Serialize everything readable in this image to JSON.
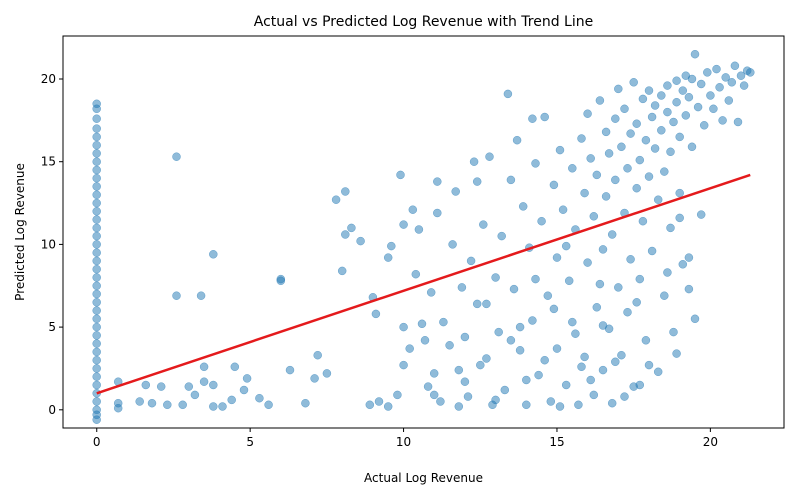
{
  "chart_data": {
    "type": "scatter",
    "title": "Actual vs Predicted Log Revenue with Trend Line",
    "xlabel": "Actual Log Revenue",
    "ylabel": "Predicted Log Revenue",
    "xlim": [
      -1.1,
      22.4
    ],
    "ylim": [
      -1.1,
      22.6
    ],
    "xticks": [
      0,
      5,
      10,
      15,
      20
    ],
    "yticks": [
      0,
      5,
      10,
      15,
      20
    ],
    "grid": false,
    "point_color": "#1f77b4",
    "point_alpha": 0.5,
    "trend_line": {
      "color": "#e41a1c",
      "x": [
        0,
        21.3
      ],
      "y": [
        1.0,
        14.2
      ]
    },
    "points": [
      [
        0,
        18.5
      ],
      [
        0,
        18.2
      ],
      [
        0,
        17.6
      ],
      [
        0,
        17.0
      ],
      [
        0,
        16.5
      ],
      [
        0,
        16.0
      ],
      [
        0,
        15.5
      ],
      [
        0,
        15.0
      ],
      [
        0,
        14.5
      ],
      [
        0,
        14.0
      ],
      [
        0,
        13.5
      ],
      [
        0,
        13.0
      ],
      [
        0,
        12.5
      ],
      [
        0,
        12.0
      ],
      [
        0,
        11.5
      ],
      [
        0,
        11.0
      ],
      [
        0,
        10.5
      ],
      [
        0,
        10.0
      ],
      [
        0,
        9.5
      ],
      [
        0,
        9.0
      ],
      [
        0,
        8.5
      ],
      [
        0,
        8.0
      ],
      [
        0,
        7.5
      ],
      [
        0,
        7.0
      ],
      [
        0,
        6.5
      ],
      [
        0,
        6.0
      ],
      [
        0,
        5.5
      ],
      [
        0,
        5.0
      ],
      [
        0,
        4.5
      ],
      [
        0,
        4.0
      ],
      [
        0,
        3.5
      ],
      [
        0,
        3.0
      ],
      [
        0,
        2.5
      ],
      [
        0,
        2.0
      ],
      [
        0,
        1.5
      ],
      [
        0,
        1.0
      ],
      [
        0,
        0.5
      ],
      [
        0,
        0.0
      ],
      [
        0,
        -0.3
      ],
      [
        0,
        -0.6
      ],
      [
        0.7,
        1.7
      ],
      [
        0.7,
        0.4
      ],
      [
        0.7,
        0.1
      ],
      [
        1.4,
        0.5
      ],
      [
        1.6,
        1.5
      ],
      [
        1.8,
        0.4
      ],
      [
        2.1,
        1.4
      ],
      [
        2.3,
        0.3
      ],
      [
        2.6,
        15.3
      ],
      [
        2.6,
        6.9
      ],
      [
        2.8,
        0.3
      ],
      [
        3.0,
        1.4
      ],
      [
        3.2,
        0.9
      ],
      [
        3.4,
        6.9
      ],
      [
        3.5,
        2.6
      ],
      [
        3.5,
        1.7
      ],
      [
        3.8,
        9.4
      ],
      [
        3.8,
        1.5
      ],
      [
        3.8,
        0.2
      ],
      [
        4.1,
        0.2
      ],
      [
        4.4,
        0.6
      ],
      [
        4.5,
        2.6
      ],
      [
        4.8,
        1.2
      ],
      [
        4.9,
        1.9
      ],
      [
        5.3,
        0.7
      ],
      [
        5.6,
        0.3
      ],
      [
        6.0,
        7.9
      ],
      [
        6.0,
        7.8
      ],
      [
        6.3,
        2.4
      ],
      [
        6.8,
        0.4
      ],
      [
        7.1,
        1.9
      ],
      [
        7.2,
        3.3
      ],
      [
        7.5,
        2.2
      ],
      [
        7.8,
        12.7
      ],
      [
        8.0,
        8.4
      ],
      [
        8.1,
        10.6
      ],
      [
        8.1,
        13.2
      ],
      [
        8.3,
        11.0
      ],
      [
        8.6,
        10.2
      ],
      [
        8.9,
        0.3
      ],
      [
        9.0,
        6.8
      ],
      [
        9.1,
        5.8
      ],
      [
        9.2,
        0.5
      ],
      [
        9.5,
        9.2
      ],
      [
        9.6,
        9.9
      ],
      [
        9.8,
        0.9
      ],
      [
        9.9,
        14.2
      ],
      [
        10.0,
        11.2
      ],
      [
        10.0,
        5.0
      ],
      [
        10.2,
        3.7
      ],
      [
        10.3,
        12.1
      ],
      [
        10.4,
        8.2
      ],
      [
        10.5,
        10.9
      ],
      [
        10.6,
        5.2
      ],
      [
        10.8,
        1.4
      ],
      [
        10.9,
        7.1
      ],
      [
        11.0,
        2.2
      ],
      [
        11.1,
        13.8
      ],
      [
        11.1,
        11.9
      ],
      [
        11.2,
        0.5
      ],
      [
        11.3,
        5.3
      ],
      [
        11.5,
        3.9
      ],
      [
        11.6,
        10.0
      ],
      [
        11.7,
        13.2
      ],
      [
        11.8,
        2.4
      ],
      [
        11.9,
        7.4
      ],
      [
        12.0,
        4.4
      ],
      [
        12.1,
        0.8
      ],
      [
        12.2,
        9.0
      ],
      [
        12.3,
        15.0
      ],
      [
        12.4,
        13.8
      ],
      [
        12.5,
        2.7
      ],
      [
        12.6,
        11.2
      ],
      [
        12.7,
        6.4
      ],
      [
        12.8,
        15.3
      ],
      [
        12.9,
        0.3
      ],
      [
        13.0,
        8.0
      ],
      [
        13.1,
        4.7
      ],
      [
        13.2,
        10.5
      ],
      [
        13.3,
        1.2
      ],
      [
        13.4,
        19.1
      ],
      [
        13.5,
        13.9
      ],
      [
        13.6,
        7.3
      ],
      [
        13.7,
        16.3
      ],
      [
        13.8,
        3.6
      ],
      [
        13.9,
        12.3
      ],
      [
        14.0,
        0.3
      ],
      [
        14.1,
        9.8
      ],
      [
        14.2,
        17.6
      ],
      [
        14.2,
        5.4
      ],
      [
        14.3,
        14.9
      ],
      [
        14.4,
        2.1
      ],
      [
        14.5,
        11.4
      ],
      [
        14.6,
        17.7
      ],
      [
        14.7,
        6.9
      ],
      [
        14.8,
        0.5
      ],
      [
        14.9,
        13.6
      ],
      [
        15.0,
        9.2
      ],
      [
        15.0,
        3.7
      ],
      [
        15.1,
        15.7
      ],
      [
        15.2,
        12.1
      ],
      [
        15.3,
        1.5
      ],
      [
        15.4,
        7.8
      ],
      [
        15.5,
        14.6
      ],
      [
        15.5,
        5.3
      ],
      [
        15.6,
        10.9
      ],
      [
        15.7,
        0.3
      ],
      [
        15.8,
        16.4
      ],
      [
        15.9,
        13.1
      ],
      [
        15.9,
        3.2
      ],
      [
        16.0,
        8.9
      ],
      [
        16.0,
        17.9
      ],
      [
        16.1,
        15.2
      ],
      [
        16.2,
        11.7
      ],
      [
        16.2,
        0.9
      ],
      [
        16.3,
        6.2
      ],
      [
        16.3,
        14.2
      ],
      [
        16.4,
        18.7
      ],
      [
        16.5,
        9.7
      ],
      [
        16.5,
        2.4
      ],
      [
        16.6,
        16.8
      ],
      [
        16.6,
        12.9
      ],
      [
        16.7,
        4.9
      ],
      [
        16.7,
        15.5
      ],
      [
        16.8,
        0.4
      ],
      [
        16.8,
        10.6
      ],
      [
        16.9,
        17.6
      ],
      [
        16.9,
        13.9
      ],
      [
        17.0,
        7.4
      ],
      [
        17.0,
        19.4
      ],
      [
        17.1,
        15.9
      ],
      [
        17.1,
        3.3
      ],
      [
        17.2,
        11.9
      ],
      [
        17.2,
        18.2
      ],
      [
        17.3,
        14.6
      ],
      [
        17.3,
        5.9
      ],
      [
        17.4,
        16.7
      ],
      [
        17.4,
        9.1
      ],
      [
        17.5,
        19.8
      ],
      [
        17.5,
        1.4
      ],
      [
        17.6,
        13.4
      ],
      [
        17.6,
        17.3
      ],
      [
        17.7,
        15.1
      ],
      [
        17.7,
        7.9
      ],
      [
        17.8,
        18.8
      ],
      [
        17.8,
        11.4
      ],
      [
        17.9,
        16.3
      ],
      [
        17.9,
        4.2
      ],
      [
        18.0,
        19.3
      ],
      [
        18.0,
        14.1
      ],
      [
        18.1,
        17.7
      ],
      [
        18.1,
        9.6
      ],
      [
        18.2,
        15.8
      ],
      [
        18.2,
        18.4
      ],
      [
        18.3,
        12.7
      ],
      [
        18.3,
        2.3
      ],
      [
        18.4,
        19.0
      ],
      [
        18.4,
        16.9
      ],
      [
        18.5,
        14.4
      ],
      [
        18.5,
        6.9
      ],
      [
        18.6,
        18.0
      ],
      [
        18.6,
        19.6
      ],
      [
        18.7,
        15.6
      ],
      [
        18.7,
        11.0
      ],
      [
        18.8,
        17.4
      ],
      [
        18.8,
        4.7
      ],
      [
        18.9,
        19.9
      ],
      [
        18.9,
        18.6
      ],
      [
        19.0,
        16.5
      ],
      [
        19.0,
        13.1
      ],
      [
        19.1,
        19.3
      ],
      [
        19.1,
        8.8
      ],
      [
        19.2,
        20.2
      ],
      [
        19.2,
        17.8
      ],
      [
        19.3,
        18.9
      ],
      [
        19.3,
        9.2
      ],
      [
        19.4,
        15.9
      ],
      [
        19.4,
        20.0
      ],
      [
        19.5,
        21.5
      ],
      [
        19.5,
        5.5
      ],
      [
        19.6,
        18.3
      ],
      [
        19.7,
        19.7
      ],
      [
        19.7,
        11.8
      ],
      [
        19.8,
        17.2
      ],
      [
        19.9,
        20.4
      ],
      [
        20.0,
        19.0
      ],
      [
        20.1,
        18.2
      ],
      [
        20.2,
        20.6
      ],
      [
        20.3,
        19.5
      ],
      [
        20.4,
        17.5
      ],
      [
        20.5,
        20.1
      ],
      [
        20.6,
        18.7
      ],
      [
        20.7,
        19.8
      ],
      [
        20.8,
        20.8
      ],
      [
        20.9,
        17.4
      ],
      [
        21.0,
        20.2
      ],
      [
        21.1,
        19.6
      ],
      [
        21.2,
        20.5
      ],
      [
        21.3,
        20.4
      ],
      [
        16.4,
        7.6
      ],
      [
        15.1,
        0.2
      ],
      [
        14.0,
        1.8
      ],
      [
        13.0,
        0.6
      ],
      [
        12.0,
        1.7
      ],
      [
        11.0,
        0.9
      ],
      [
        10.0,
        2.7
      ],
      [
        9.5,
        0.2
      ],
      [
        15.6,
        4.6
      ],
      [
        16.1,
        1.8
      ],
      [
        17.2,
        0.8
      ],
      [
        14.6,
        3.0
      ],
      [
        15.3,
        9.9
      ],
      [
        14.9,
        6.1
      ],
      [
        13.5,
        4.2
      ],
      [
        12.7,
        3.1
      ],
      [
        16.9,
        2.9
      ],
      [
        17.6,
        6.5
      ],
      [
        18.0,
        2.7
      ],
      [
        18.6,
        8.3
      ],
      [
        18.9,
        3.4
      ],
      [
        19.3,
        7.3
      ],
      [
        19.0,
        11.6
      ],
      [
        17.7,
        1.5
      ],
      [
        16.5,
        5.1
      ],
      [
        15.8,
        2.6
      ],
      [
        14.3,
        7.9
      ],
      [
        13.8,
        5.0
      ],
      [
        12.4,
        6.4
      ],
      [
        11.8,
        0.2
      ],
      [
        10.7,
        4.2
      ]
    ]
  }
}
